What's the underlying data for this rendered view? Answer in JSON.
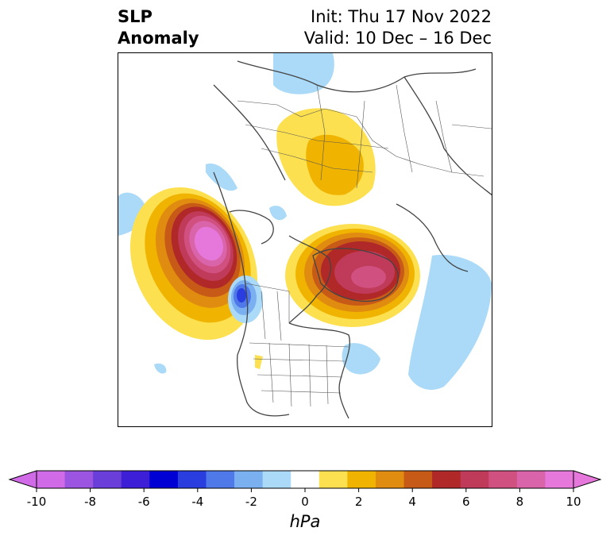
{
  "title": {
    "line1": "SLP",
    "line2": "Anomaly",
    "init": "Init: Thu 17 Nov 2022",
    "valid": "Valid: 10 Dec – 16 Dec"
  },
  "colorbar": {
    "ticks": [
      "-10",
      "-8",
      "-6",
      "-4",
      "-2",
      "0",
      "2",
      "4",
      "6",
      "8",
      "10"
    ],
    "unit": "hPa",
    "range": [
      -10,
      10
    ],
    "extend": "both",
    "colors": [
      "#d06ae6",
      "#9b55e0",
      "#6a3ed8",
      "#3c1fd6",
      "#0000d4",
      "#2a3ee0",
      "#4f79e8",
      "#7ab0f0",
      "#aadaf8",
      "#ffffff",
      "#fde050",
      "#f0b400",
      "#e08c10",
      "#c85a18",
      "#b02828",
      "#c03a5a",
      "#d05080",
      "#da64aa",
      "#e678dc"
    ]
  },
  "map": {
    "region": "Northern Hemisphere / North America polar view",
    "features": [
      "positive anomaly over North Pacific",
      "positive anomaly over Greenland / Canadian Arctic",
      "positive anomaly over northern Russia",
      "negative anomaly off Pacific Northwest coast",
      "negative anomaly western Atlantic"
    ]
  }
}
